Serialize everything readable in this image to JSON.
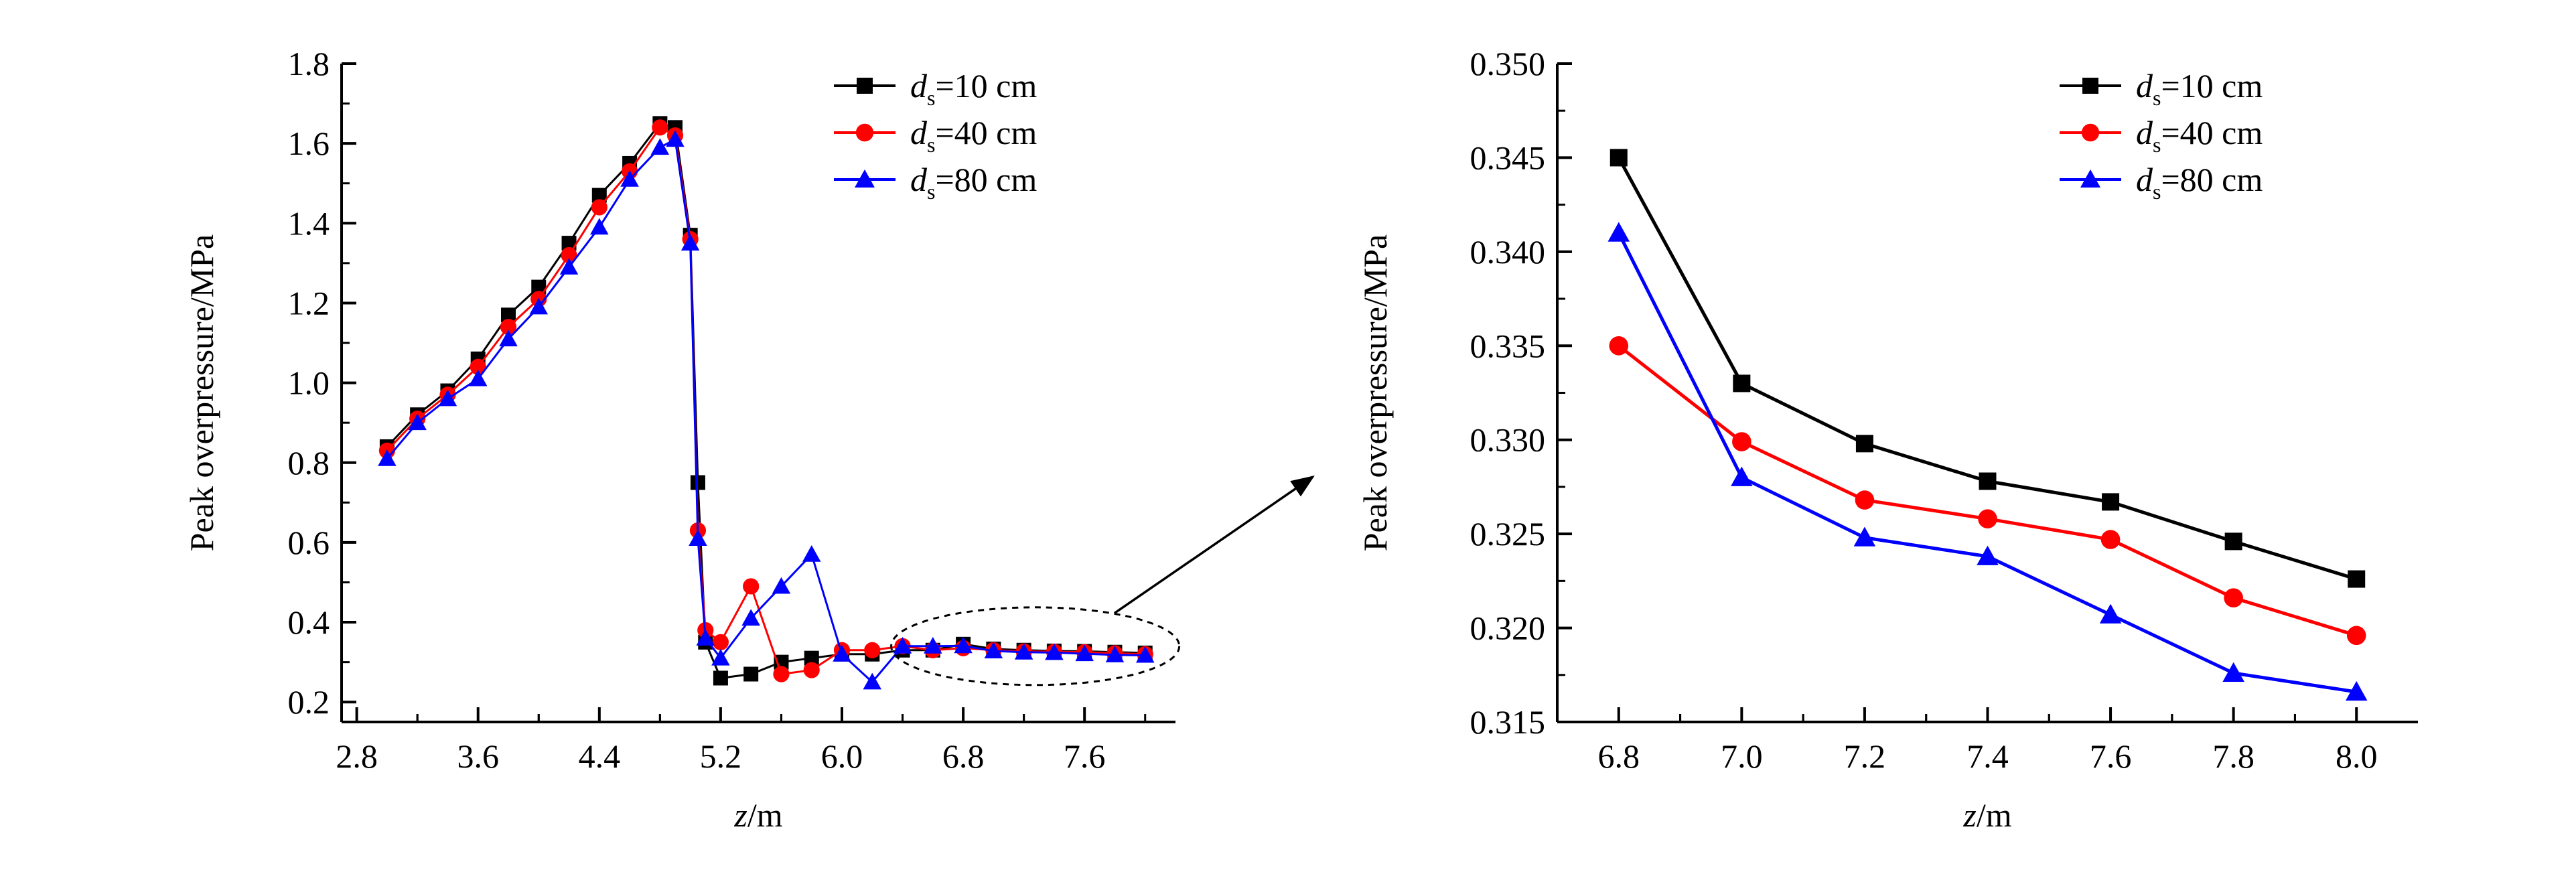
{
  "colors": {
    "black": "#000000",
    "red": "#ff0000",
    "blue": "#0000ff"
  },
  "chart_data": [
    {
      "type": "line",
      "xlabel_var": "z",
      "xlabel_unit": "/m",
      "ylabel": "Peak overpressure/MPa",
      "xlim": [
        2.7,
        8.2
      ],
      "ylim": [
        0.15,
        1.8
      ],
      "xticks": [
        "2.8",
        "3.6",
        "4.4",
        "5.2",
        "6.0",
        "6.8",
        "7.6"
      ],
      "yticks": [
        "0.2",
        "0.4",
        "0.6",
        "0.8",
        "1.0",
        "1.2",
        "1.4",
        "1.6",
        "1.8"
      ],
      "legend_position": "top-right",
      "annotation": "dashed ellipse around z = 6.4–8.0 with arrow pointing to zoomed plot",
      "series": [
        {
          "name_var": "d",
          "name_sub": "s",
          "name_rest": "=10 cm",
          "color": "#000000",
          "marker": "square",
          "x": [
            3.0,
            3.2,
            3.4,
            3.6,
            3.8,
            4.0,
            4.2,
            4.4,
            4.6,
            4.8,
            4.9,
            5.0,
            5.05,
            5.1,
            5.2,
            5.4,
            5.6,
            5.8,
            6.0,
            6.2,
            6.4,
            6.6,
            6.8,
            7.0,
            7.2,
            7.4,
            7.6,
            7.8,
            8.0
          ],
          "y": [
            0.84,
            0.92,
            0.98,
            1.06,
            1.17,
            1.24,
            1.35,
            1.47,
            1.55,
            1.65,
            1.64,
            1.37,
            0.75,
            0.35,
            0.26,
            0.27,
            0.3,
            0.31,
            0.32,
            0.32,
            0.33,
            0.33,
            0.345,
            0.333,
            0.33,
            0.328,
            0.327,
            0.325,
            0.323
          ]
        },
        {
          "name_var": "d",
          "name_sub": "s",
          "name_rest": "=40 cm",
          "color": "#ff0000",
          "marker": "circle",
          "x": [
            3.0,
            3.2,
            3.4,
            3.6,
            3.8,
            4.0,
            4.2,
            4.4,
            4.6,
            4.8,
            4.9,
            5.0,
            5.05,
            5.1,
            5.2,
            5.4,
            5.6,
            5.8,
            6.0,
            6.2,
            6.4,
            6.6,
            6.8,
            7.0,
            7.2,
            7.4,
            7.6,
            7.8,
            8.0
          ],
          "y": [
            0.83,
            0.91,
            0.97,
            1.04,
            1.14,
            1.21,
            1.32,
            1.44,
            1.53,
            1.64,
            1.62,
            1.36,
            0.63,
            0.38,
            0.35,
            0.49,
            0.27,
            0.28,
            0.33,
            0.33,
            0.34,
            0.33,
            0.335,
            0.33,
            0.327,
            0.326,
            0.325,
            0.322,
            0.32
          ]
        },
        {
          "name_var": "d",
          "name_sub": "s",
          "name_rest": "=80 cm",
          "color": "#0000ff",
          "marker": "triangle",
          "x": [
            3.0,
            3.2,
            3.4,
            3.6,
            3.8,
            4.0,
            4.2,
            4.4,
            4.6,
            4.8,
            4.9,
            5.0,
            5.05,
            5.1,
            5.2,
            5.4,
            5.6,
            5.8,
            6.0,
            6.2,
            6.4,
            6.6,
            6.8,
            7.0,
            7.2,
            7.4,
            7.6,
            7.8,
            8.0
          ],
          "y": [
            0.81,
            0.9,
            0.96,
            1.01,
            1.11,
            1.19,
            1.29,
            1.39,
            1.51,
            1.59,
            1.61,
            1.35,
            0.61,
            0.36,
            0.31,
            0.41,
            0.49,
            0.57,
            0.32,
            0.25,
            0.34,
            0.34,
            0.341,
            0.328,
            0.325,
            0.324,
            0.321,
            0.318,
            0.317
          ]
        }
      ]
    },
    {
      "type": "line",
      "xlabel_var": "z",
      "xlabel_unit": "/m",
      "ylabel": "Peak overpressure/MPa",
      "xlim": [
        6.7,
        8.1
      ],
      "ylim": [
        0.315,
        0.35
      ],
      "xticks": [
        "6.8",
        "7.0",
        "7.2",
        "7.4",
        "7.6",
        "7.8",
        "8.0"
      ],
      "yticks": [
        "0.315",
        "0.320",
        "0.325",
        "0.330",
        "0.335",
        "0.340",
        "0.345",
        "0.350"
      ],
      "legend_position": "top-right",
      "series": [
        {
          "name_var": "d",
          "name_sub": "s",
          "name_rest": "=10 cm",
          "color": "#000000",
          "marker": "square",
          "x": [
            6.8,
            7.0,
            7.2,
            7.4,
            7.6,
            7.8,
            8.0
          ],
          "y": [
            0.345,
            0.333,
            0.3298,
            0.3278,
            0.3267,
            0.3246,
            0.3226
          ]
        },
        {
          "name_var": "d",
          "name_sub": "s",
          "name_rest": "=40 cm",
          "color": "#ff0000",
          "marker": "circle",
          "x": [
            6.8,
            7.0,
            7.2,
            7.4,
            7.6,
            7.8,
            8.0
          ],
          "y": [
            0.335,
            0.3299,
            0.3268,
            0.3258,
            0.3247,
            0.3216,
            0.3196
          ]
        },
        {
          "name_var": "d",
          "name_sub": "s",
          "name_rest": "=80 cm",
          "color": "#0000ff",
          "marker": "triangle",
          "x": [
            6.8,
            7.0,
            7.2,
            7.4,
            7.6,
            7.8,
            8.0
          ],
          "y": [
            0.341,
            0.328,
            0.3248,
            0.3238,
            0.3207,
            0.3176,
            0.3166
          ]
        }
      ]
    }
  ]
}
